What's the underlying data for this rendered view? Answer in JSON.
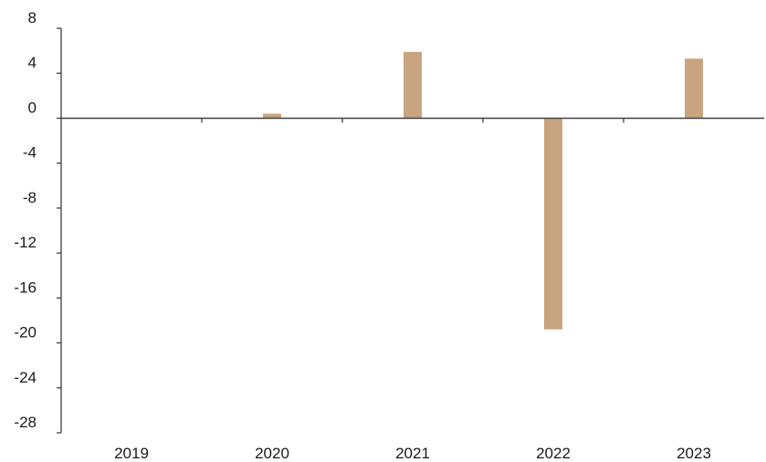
{
  "chart_data": {
    "type": "bar",
    "categories": [
      "2019",
      "2020",
      "2021",
      "2022",
      "2023"
    ],
    "values": [
      0,
      0.4,
      5.9,
      -18.8,
      5.3
    ],
    "title": "",
    "xlabel": "",
    "ylabel": "",
    "ylim": [
      -28,
      8
    ],
    "yticks": [
      8,
      4,
      0,
      -4,
      -8,
      -12,
      -16,
      -20,
      -24,
      -28
    ],
    "ytick_labels": [
      "8",
      "4",
      "0",
      "-4",
      "-8",
      "-12",
      "-16",
      "-20",
      "-24",
      "-28"
    ],
    "grid": false,
    "legend": "none",
    "bar_color": "#c8a580",
    "axis_color": "#404040"
  }
}
